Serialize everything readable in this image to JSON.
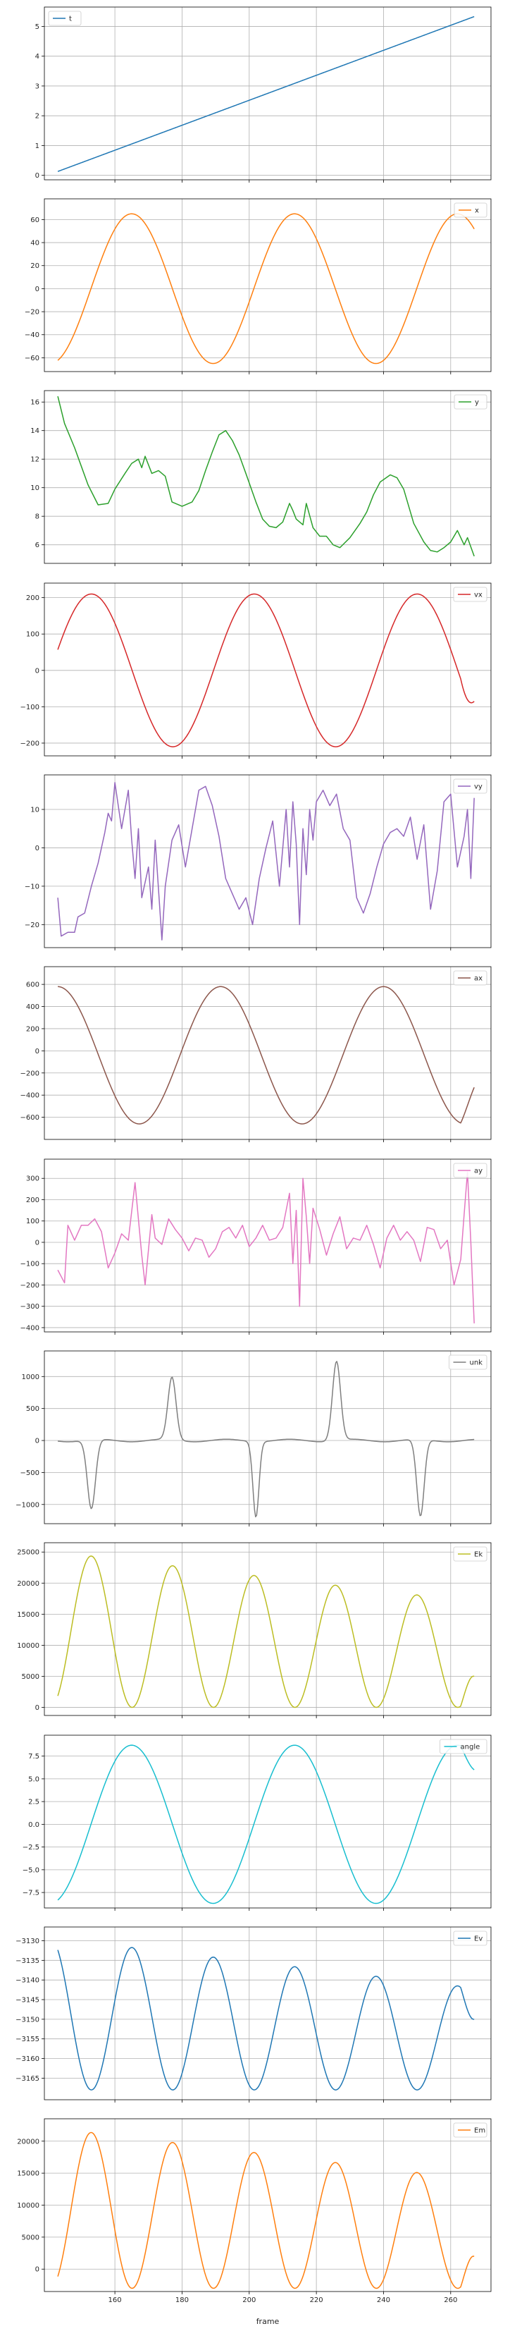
{
  "figure": {
    "xlabel": "frame"
  },
  "colors": {
    "t": "#1f77b4",
    "x": "#ff7f0e",
    "y": "#2ca02c",
    "vx": "#d62728",
    "vy": "#9467bd",
    "ax": "#8c564b",
    "ay": "#e377c2",
    "unk": "#7f7f7f",
    "Ek": "#bcbd22",
    "angle": "#17becf",
    "Ev": "#1f77b4",
    "Em": "#ff7f0e",
    "grid": "#b0b0b0"
  },
  "chart_data": [
    {
      "type": "line",
      "series": [
        {
          "name": "t"
        }
      ],
      "legend": "top-left",
      "grid": true,
      "xlim": [
        139,
        272
      ],
      "xticks": [
        160,
        180,
        200,
        220,
        240,
        260
      ],
      "xticklabels_visible": false,
      "ylim": [
        -0.15,
        5.65
      ],
      "yticks": [
        0,
        1,
        2,
        3,
        4,
        5
      ],
      "fn": "linear",
      "params": {
        "y0": 0.13,
        "y1": 5.33
      }
    },
    {
      "type": "line",
      "series": [
        {
          "name": "x"
        }
      ],
      "legend": "top-right",
      "grid": true,
      "xlim": [
        139,
        272
      ],
      "xticks": [
        160,
        180,
        200,
        220,
        240,
        260
      ],
      "xticklabels_visible": false,
      "ylim": [
        -72,
        78
      ],
      "yticks": [
        -60,
        -40,
        -20,
        0,
        20,
        40,
        60
      ],
      "fn": "sine",
      "params": {
        "amp": 65,
        "center": 0,
        "x0": 165,
        "period": 48.5
      }
    },
    {
      "type": "line",
      "series": [
        {
          "name": "y"
        }
      ],
      "legend": "top-right",
      "grid": true,
      "xlim": [
        139,
        272
      ],
      "xticks": [
        160,
        180,
        200,
        220,
        240,
        260
      ],
      "xticklabels_visible": false,
      "ylim": [
        4.7,
        16.8
      ],
      "yticks": [
        6,
        8,
        10,
        12,
        14,
        16
      ],
      "fn": "points",
      "x": [
        143,
        145,
        148,
        150,
        152,
        155,
        158,
        160,
        163,
        165,
        167,
        168,
        169,
        171,
        173,
        175,
        177,
        180,
        183,
        185,
        187,
        189,
        191,
        193,
        195,
        197,
        199,
        202,
        204,
        206,
        208,
        210,
        212,
        213,
        214,
        216,
        217,
        219,
        221,
        223,
        225,
        227,
        230,
        233,
        235,
        237,
        239,
        242,
        244,
        246,
        249,
        252,
        254,
        256,
        258,
        260,
        262,
        264,
        265,
        267
      ],
      "y": [
        16.4,
        14.5,
        12.8,
        11.5,
        10.2,
        8.8,
        8.9,
        9.9,
        11.0,
        11.7,
        12.0,
        11.4,
        12.2,
        11.0,
        11.2,
        10.8,
        9.0,
        8.7,
        9.0,
        9.8,
        11.2,
        12.5,
        13.7,
        14.0,
        13.3,
        12.3,
        11.0,
        9.0,
        7.8,
        7.3,
        7.2,
        7.6,
        8.9,
        8.4,
        7.8,
        7.4,
        8.9,
        7.2,
        6.6,
        6.6,
        6.0,
        5.8,
        6.5,
        7.5,
        8.3,
        9.5,
        10.4,
        10.9,
        10.7,
        9.9,
        7.5,
        6.2,
        5.6,
        5.5,
        5.8,
        6.2,
        7.0,
        6.0,
        6.5,
        5.2
      ]
    },
    {
      "type": "line",
      "series": [
        {
          "name": "vx"
        }
      ],
      "legend": "top-right",
      "grid": true,
      "xlim": [
        139,
        272
      ],
      "xticks": [
        160,
        180,
        200,
        220,
        240,
        260
      ],
      "xticklabels_visible": false,
      "ylim": [
        -235,
        240
      ],
      "yticks": [
        -200,
        -100,
        0,
        100,
        200
      ],
      "fn": "sine",
      "params": {
        "amp": 210,
        "center": 0,
        "x0": 153,
        "period": 48.5,
        "x_end_value": -85
      }
    },
    {
      "type": "line",
      "series": [
        {
          "name": "vy"
        }
      ],
      "legend": "top-right",
      "grid": true,
      "xlim": [
        139,
        272
      ],
      "xticks": [
        160,
        180,
        200,
        220,
        240,
        260
      ],
      "xticklabels_visible": false,
      "ylim": [
        -26,
        19
      ],
      "yticks": [
        -20,
        -10,
        0,
        10
      ],
      "fn": "points",
      "x": [
        143,
        144,
        146,
        148,
        149,
        151,
        153,
        155,
        157,
        158,
        159,
        160,
        162,
        164,
        165,
        166,
        167,
        168,
        170,
        171,
        172,
        174,
        175,
        177,
        179,
        181,
        183,
        185,
        187,
        189,
        191,
        193,
        195,
        197,
        199,
        201,
        203,
        205,
        207,
        209,
        211,
        212,
        213,
        214,
        215,
        216,
        217,
        218,
        219,
        220,
        222,
        224,
        226,
        228,
        230,
        232,
        234,
        236,
        238,
        240,
        242,
        244,
        246,
        248,
        250,
        252,
        254,
        256,
        258,
        260,
        262,
        264,
        265,
        266,
        267
      ],
      "y": [
        -13,
        -23,
        -22,
        -22,
        -18,
        -17,
        -10,
        -4,
        4,
        9,
        7,
        17,
        5,
        15,
        2,
        -8,
        5,
        -13,
        -5,
        -16,
        2,
        -24,
        -10,
        2,
        6,
        -5,
        5,
        15,
        16,
        11,
        3,
        -8,
        -12,
        -16,
        -13,
        -20,
        -8,
        0,
        7,
        -10,
        10,
        -5,
        12,
        1,
        -20,
        5,
        -7,
        10,
        2,
        12,
        15,
        11,
        14,
        5,
        2,
        -13,
        -17,
        -12,
        -5,
        1,
        4,
        5,
        3,
        8,
        -3,
        6,
        -16,
        -6,
        12,
        14,
        -5,
        3,
        10,
        -8,
        13
      ]
    },
    {
      "type": "line",
      "series": [
        {
          "name": "ax"
        }
      ],
      "legend": "top-right",
      "grid": true,
      "xlim": [
        139,
        272
      ],
      "xticks": [
        160,
        180,
        200,
        220,
        240,
        260
      ],
      "xticklabels_visible": false,
      "ylim": [
        -800,
        760
      ],
      "yticks": [
        -600,
        -400,
        -200,
        0,
        200,
        400,
        600
      ],
      "fn": "sine",
      "params": {
        "amp": 620,
        "center": -40,
        "x0": 143,
        "period": 48.5,
        "x_end_value": -330
      }
    },
    {
      "type": "line",
      "series": [
        {
          "name": "ay"
        }
      ],
      "legend": "top-right",
      "grid": true,
      "xlim": [
        139,
        272
      ],
      "xticks": [
        160,
        180,
        200,
        220,
        240,
        260
      ],
      "xticklabels_visible": false,
      "ylim": [
        -420,
        390
      ],
      "yticks": [
        -400,
        -300,
        -200,
        -100,
        0,
        100,
        200,
        300
      ],
      "fn": "points",
      "x": [
        143,
        145,
        146,
        148,
        150,
        152,
        154,
        156,
        158,
        160,
        162,
        164,
        166,
        168,
        169,
        171,
        172,
        174,
        176,
        178,
        180,
        182,
        184,
        186,
        188,
        190,
        192,
        194,
        196,
        198,
        200,
        202,
        204,
        206,
        208,
        210,
        212,
        213,
        214,
        215,
        216,
        217,
        218,
        219,
        221,
        223,
        225,
        227,
        229,
        231,
        233,
        235,
        237,
        239,
        241,
        243,
        245,
        247,
        249,
        251,
        253,
        255,
        257,
        259,
        261,
        263,
        264,
        265,
        266,
        267
      ],
      "y": [
        -130,
        -190,
        80,
        10,
        80,
        80,
        110,
        50,
        -120,
        -50,
        40,
        10,
        280,
        -60,
        -200,
        130,
        20,
        -10,
        110,
        60,
        20,
        -40,
        20,
        10,
        -70,
        -30,
        50,
        70,
        20,
        80,
        -20,
        20,
        80,
        10,
        20,
        70,
        230,
        -100,
        150,
        -300,
        300,
        120,
        -100,
        160,
        60,
        -60,
        40,
        120,
        -30,
        20,
        10,
        80,
        -10,
        -120,
        20,
        80,
        10,
        50,
        10,
        -90,
        70,
        60,
        -30,
        10,
        -200,
        -80,
        130,
        330,
        0,
        -380
      ]
    },
    {
      "type": "line",
      "series": [
        {
          "name": "unk"
        }
      ],
      "legend": "top-right",
      "grid": true,
      "xlim": [
        139,
        272
      ],
      "xticks": [
        160,
        180,
        200,
        220,
        240,
        260
      ],
      "xticklabels_visible": false,
      "ylim": [
        -1300,
        1400
      ],
      "yticks": [
        -1000,
        -500,
        0,
        500,
        1000
      ],
      "fn": "spikes",
      "params": {
        "spikes": [
          [
            153,
            -1080,
            1.2
          ],
          [
            177,
            980,
            1.2
          ],
          [
            202,
            -1180,
            0.9
          ],
          [
            226,
            1240,
            1.2
          ],
          [
            251,
            -1200,
            1.1
          ]
        ]
      }
    },
    {
      "type": "line",
      "series": [
        {
          "name": "Ek"
        }
      ],
      "legend": "top-right",
      "grid": true,
      "xlim": [
        139,
        272
      ],
      "xticks": [
        160,
        180,
        200,
        220,
        240,
        260
      ],
      "xticklabels_visible": false,
      "ylim": [
        -1300,
        26500
      ],
      "yticks": [
        0,
        5000,
        10000,
        15000,
        20000,
        25000
      ],
      "fn": "sin2",
      "params": {
        "amp_start": 25000,
        "amp_end": 17000,
        "x0": 153,
        "period": 24.25,
        "x_end_value": 5000
      }
    },
    {
      "type": "line",
      "series": [
        {
          "name": "angle"
        }
      ],
      "legend": "top-right",
      "grid": true,
      "xlim": [
        139,
        272
      ],
      "xticks": [
        160,
        180,
        200,
        220,
        240,
        260
      ],
      "xticklabels_visible": false,
      "ylim": [
        -9.2,
        9.8
      ],
      "yticks": [
        -7.5,
        -5.0,
        -2.5,
        0.0,
        2.5,
        5.0,
        7.5
      ],
      "fn": "sine",
      "params": {
        "amp": 8.7,
        "center": 0,
        "x0": 165,
        "period": 48.5,
        "x_end_value": 6.0
      }
    },
    {
      "type": "line",
      "series": [
        {
          "name": "Ev"
        }
      ],
      "legend": "top-right",
      "grid": true,
      "xlim": [
        139,
        272
      ],
      "xticks": [
        160,
        180,
        200,
        220,
        240,
        260
      ],
      "xticklabels_visible": false,
      "ylim": [
        -3170.5,
        -3126.5
      ],
      "yticks": [
        -3165,
        -3160,
        -3155,
        -3150,
        -3145,
        -3140,
        -3135,
        -3130
      ],
      "fn": "cos2",
      "params": {
        "base": -3168,
        "amp_start": 38.5,
        "amp_end": 26,
        "x0": 153,
        "period": 24.25,
        "x_end_value": -3150
      }
    },
    {
      "type": "line",
      "series": [
        {
          "name": "Em"
        }
      ],
      "legend": "top-right",
      "grid": true,
      "xlim": [
        139,
        272
      ],
      "xticks": [
        160,
        180,
        200,
        220,
        240,
        260
      ],
      "xticklabels_visible": true,
      "ylim": [
        -3500,
        23500
      ],
      "yticks": [
        0,
        5000,
        10000,
        15000,
        20000
      ],
      "fn": "sin2",
      "params": {
        "amp_start": 25000,
        "amp_end": 17000,
        "offset": -3000,
        "x0": 153,
        "period": 24.25,
        "x_end_value": 2000
      }
    }
  ]
}
